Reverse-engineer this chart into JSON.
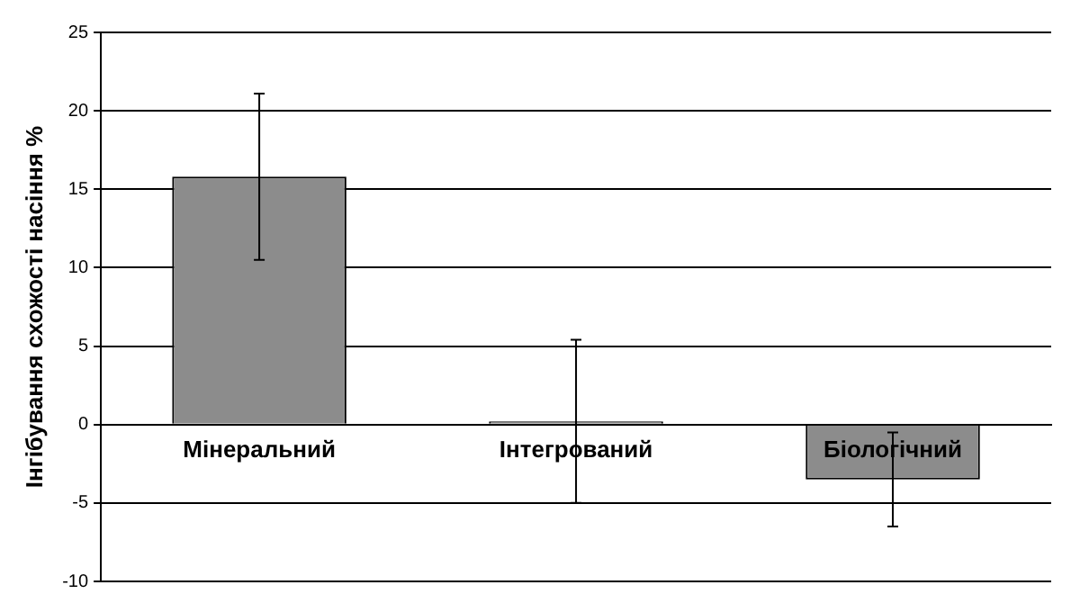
{
  "chart_data": {
    "type": "bar",
    "ylabel": "Інгібування схожості насіння %",
    "categories": [
      "Мінеральний",
      "Інтегрований",
      "Біологічний"
    ],
    "values": [
      15.8,
      0.2,
      -3.5
    ],
    "errors": [
      5.3,
      5.2,
      3
    ],
    "color": "#8c8c8c",
    "ylim": [
      -10,
      25
    ],
    "yticks": [
      -10,
      -5,
      0,
      5,
      10,
      15,
      20,
      25
    ],
    "grid": "y",
    "legend": false
  }
}
